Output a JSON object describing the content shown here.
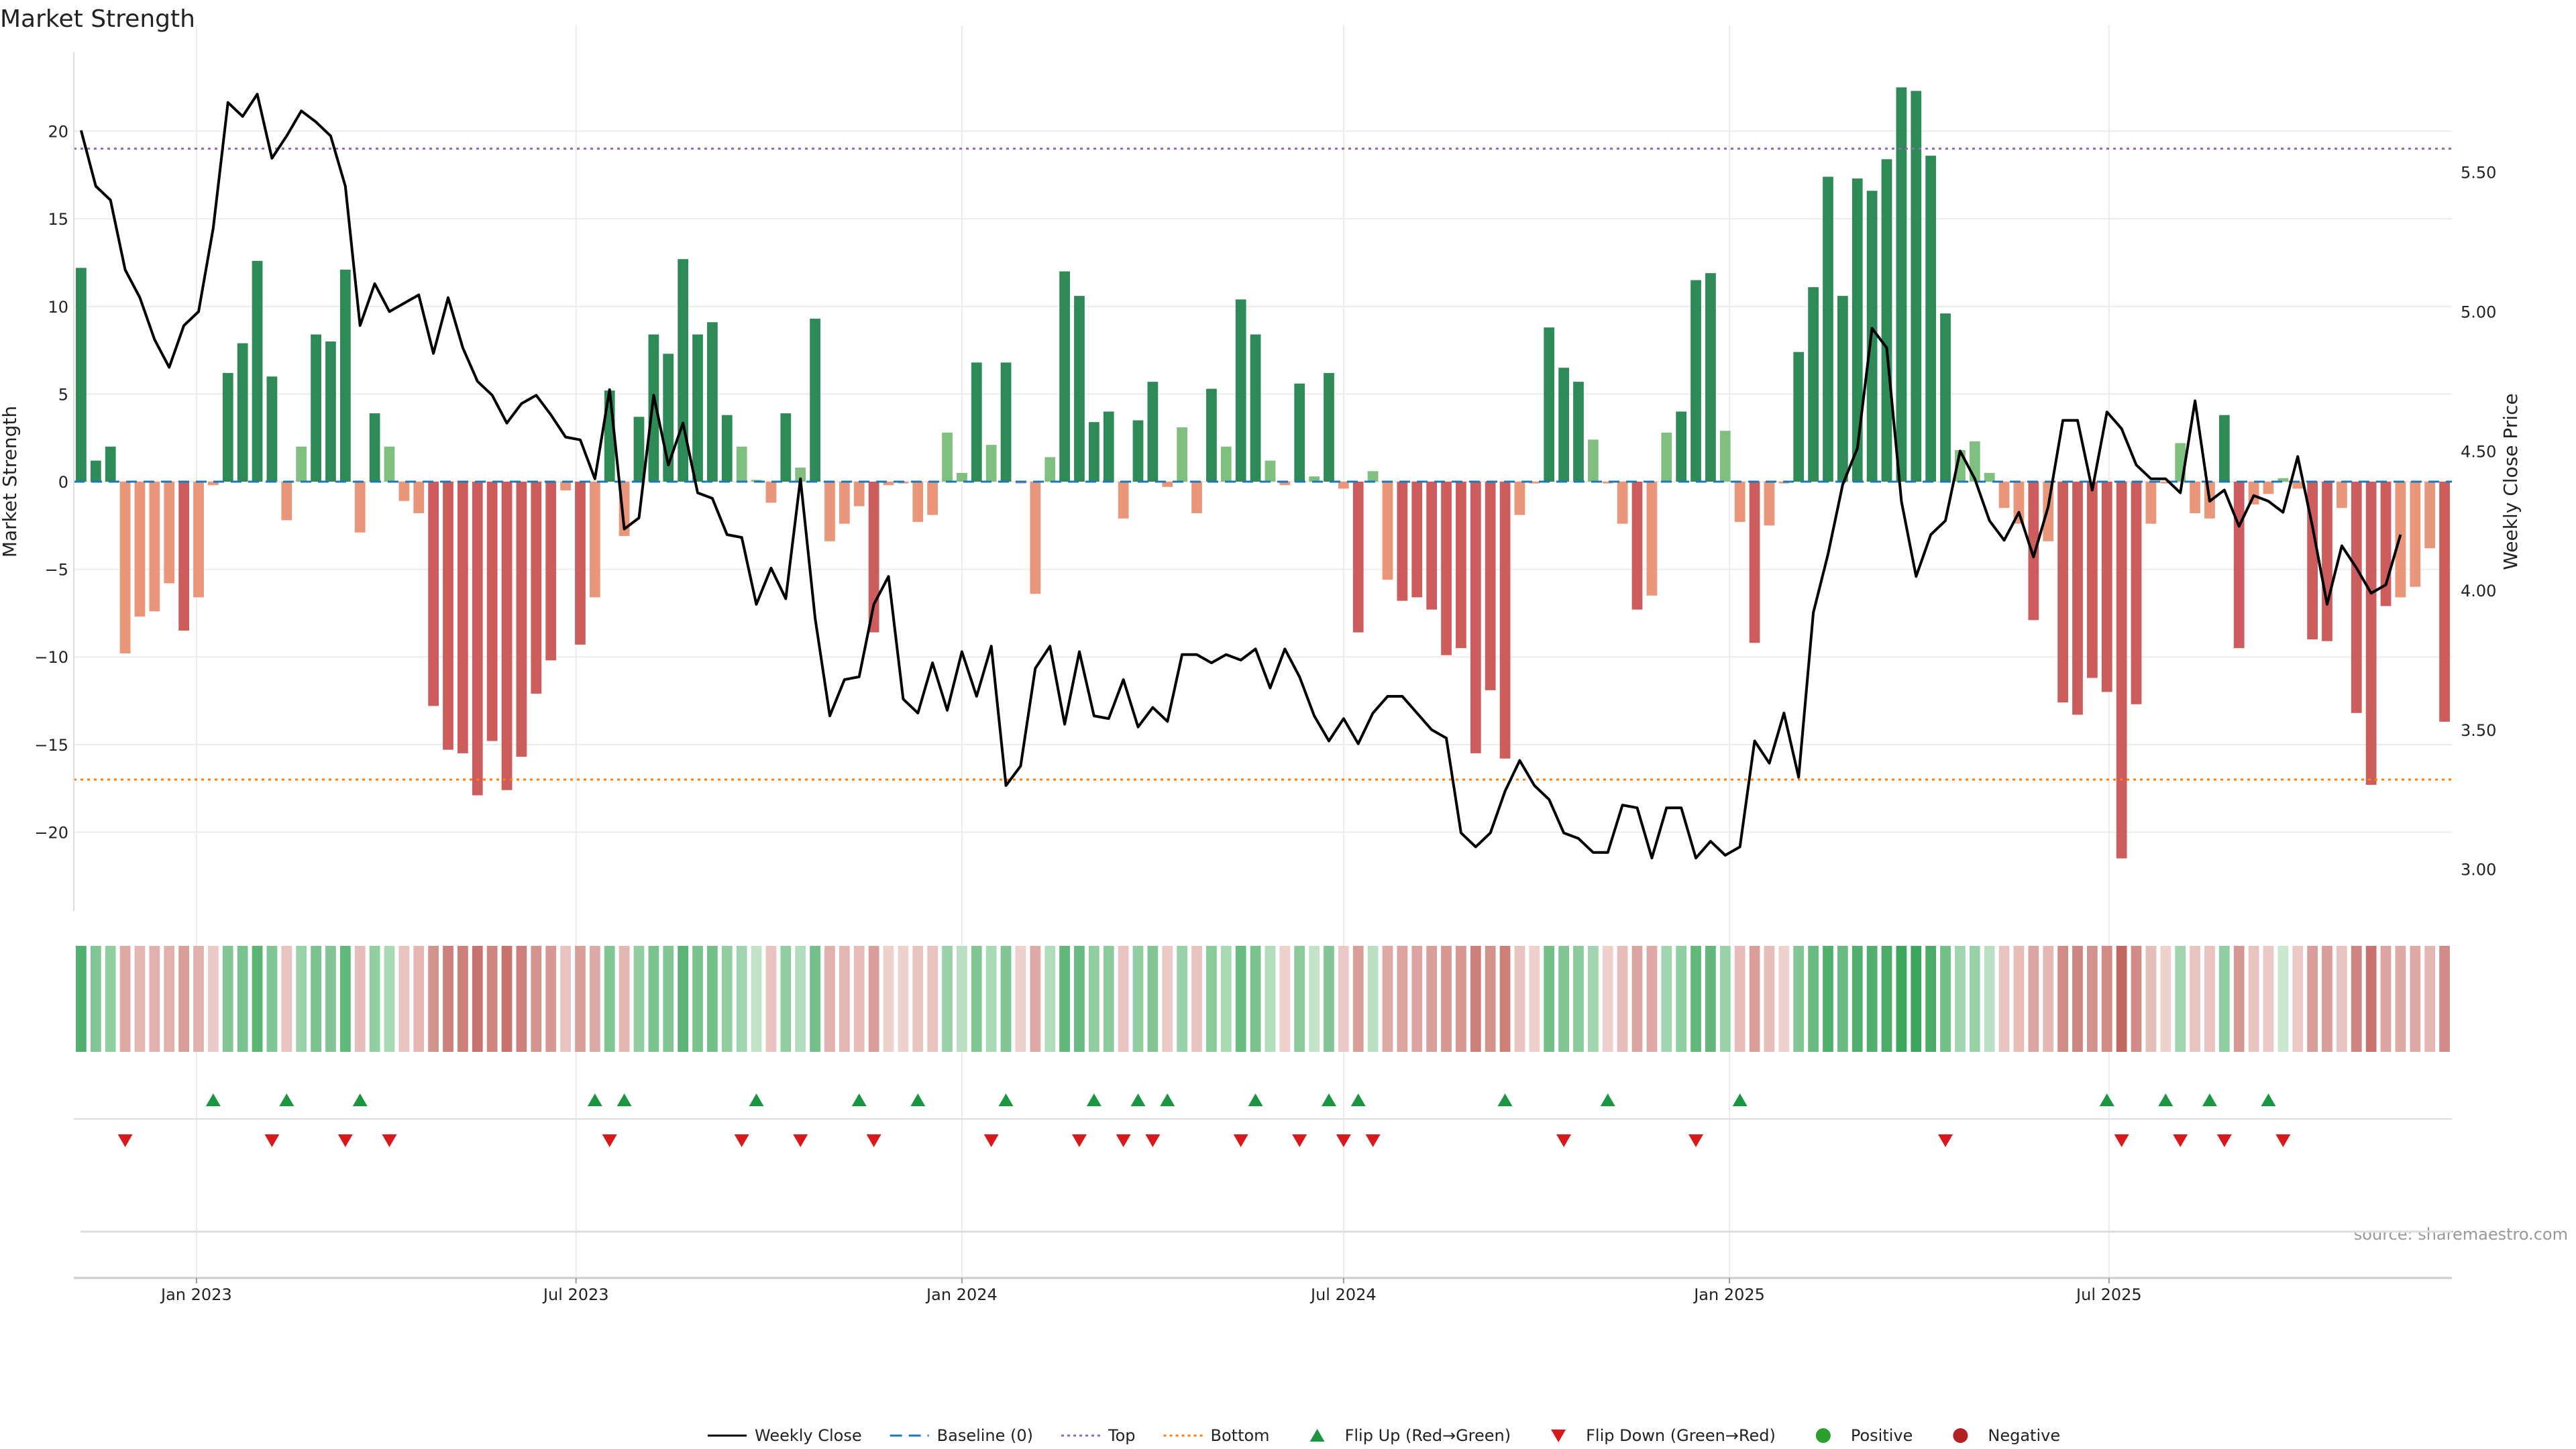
{
  "chart_data": {
    "type": "bar",
    "title": "Market Strength",
    "ylabel": "Market Strength",
    "y2label": "Weekly Close Price",
    "source": "source: sharemaestro.com",
    "ylim": [
      -24.5,
      24.5
    ],
    "y2lim": [
      2.85,
      5.93
    ],
    "yticks": [
      -20,
      -15,
      -10,
      -5,
      0,
      5,
      10,
      15,
      20
    ],
    "yticklabels": [
      "−20",
      "−15",
      "−10",
      "−5",
      "0",
      "5",
      "10",
      "15",
      "20"
    ],
    "y2ticks": [
      3.0,
      3.5,
      4.0,
      4.5,
      5.0,
      5.5
    ],
    "y2ticklabels": [
      "3.00",
      "3.50",
      "4.00",
      "4.50",
      "5.00",
      "5.50"
    ],
    "x_start": "2022-11-07",
    "x_step_days": 7,
    "xticks": [
      {
        "date": "2023-01-01",
        "label": "Jan 2023"
      },
      {
        "date": "2023-07-01",
        "label": "Jul 2023"
      },
      {
        "date": "2024-01-01",
        "label": "Jan 2024"
      },
      {
        "date": "2024-07-01",
        "label": "Jul 2024"
      },
      {
        "date": "2025-01-01",
        "label": "Jan 2025"
      },
      {
        "date": "2025-07-01",
        "label": "Jul 2025"
      }
    ],
    "top_level": 19,
    "bottom_level": -17,
    "colors": {
      "pos_strong": "#2e8b57",
      "pos_weak": "#7fbf7f",
      "neg_strong": "#cd5c5c",
      "neg_weak": "#e9967a",
      "price": "#000000",
      "baseline": "#1f77b4",
      "top": "#9467bd",
      "bottom": "#ff7f0e",
      "flip_up": "#1a9641",
      "flip_down": "#d7191c",
      "positive": "#2ca02c",
      "negative": "#b22222"
    },
    "strength": [
      12.2,
      1.2,
      2.0,
      -9.8,
      -7.7,
      -7.4,
      -5.8,
      -8.5,
      -6.6,
      -0.2,
      6.2,
      7.9,
      12.6,
      6.0,
      -2.2,
      2.0,
      8.4,
      8.0,
      12.1,
      -2.9,
      3.9,
      2.0,
      -1.1,
      -1.8,
      -12.8,
      -15.3,
      -15.5,
      -17.9,
      -14.8,
      -17.6,
      -15.7,
      -12.1,
      -10.2,
      -0.5,
      -9.3,
      -6.6,
      5.2,
      -3.1,
      3.7,
      8.4,
      7.3,
      12.7,
      8.4,
      9.1,
      3.8,
      2.0,
      0.1,
      -1.2,
      3.9,
      0.8,
      9.3,
      -3.4,
      -2.4,
      -1.4,
      -8.6,
      -0.2,
      -0.1,
      -2.3,
      -1.9,
      2.8,
      0.5,
      6.8,
      2.1,
      6.8,
      -0.1,
      -6.4,
      1.4,
      12.0,
      10.6,
      3.4,
      4.0,
      -2.1,
      3.5,
      5.7,
      -0.3,
      3.1,
      -1.8,
      5.3,
      2.0,
      10.4,
      8.4,
      1.2,
      -0.2,
      5.6,
      0.3,
      6.2,
      -0.4,
      -8.6,
      0.6,
      -5.6,
      -6.8,
      -6.6,
      -7.3,
      -9.9,
      -9.5,
      -15.5,
      -11.9,
      -15.8,
      -1.9,
      -0.1,
      8.8,
      6.5,
      5.7,
      2.4,
      -0.1,
      -2.4,
      -7.3,
      -6.5,
      2.8,
      4.0,
      11.5,
      11.9,
      2.9,
      -2.3,
      -9.2,
      -2.5,
      -0.1,
      7.4,
      11.1,
      17.4,
      10.6,
      17.3,
      16.6,
      18.4,
      22.5,
      22.3,
      18.6,
      9.6,
      1.8,
      2.3,
      0.5,
      -1.5,
      -2.4,
      -7.9,
      -3.4,
      -12.6,
      -13.3,
      -11.2,
      -12.0,
      -21.5,
      -12.7,
      -2.4,
      -0.1,
      2.2,
      -1.8,
      -2.1,
      3.8,
      -9.5,
      -1.3,
      -0.7,
      0.2,
      -0.4,
      -9.0,
      -9.1,
      -1.5,
      -13.2,
      -17.3,
      -7.1,
      -6.6,
      -6.0,
      -3.8,
      -13.7
    ],
    "intensity": [
      0.85,
      0.55,
      0.45,
      0.4,
      0.3,
      0.35,
      0.35,
      0.5,
      0.35,
      0.15,
      0.55,
      0.6,
      0.8,
      0.55,
      0.2,
      0.4,
      0.6,
      0.55,
      0.75,
      0.25,
      0.45,
      0.3,
      0.2,
      0.3,
      0.6,
      0.75,
      0.75,
      0.85,
      0.7,
      0.85,
      0.75,
      0.6,
      0.55,
      0.2,
      0.5,
      0.4,
      0.55,
      0.3,
      0.45,
      0.6,
      0.55,
      0.8,
      0.6,
      0.65,
      0.45,
      0.35,
      0.15,
      0.2,
      0.45,
      0.25,
      0.65,
      0.35,
      0.3,
      0.25,
      0.5,
      0.1,
      0.1,
      0.2,
      0.2,
      0.4,
      0.2,
      0.55,
      0.3,
      0.55,
      0.1,
      0.4,
      0.25,
      0.75,
      0.7,
      0.45,
      0.5,
      0.2,
      0.45,
      0.55,
      0.15,
      0.4,
      0.2,
      0.5,
      0.3,
      0.7,
      0.6,
      0.25,
      0.1,
      0.5,
      0.15,
      0.55,
      0.15,
      0.5,
      0.2,
      0.4,
      0.45,
      0.45,
      0.5,
      0.55,
      0.55,
      0.75,
      0.6,
      0.75,
      0.2,
      0.1,
      0.65,
      0.55,
      0.5,
      0.35,
      0.1,
      0.25,
      0.45,
      0.4,
      0.35,
      0.45,
      0.75,
      0.75,
      0.4,
      0.25,
      0.5,
      0.25,
      0.1,
      0.55,
      0.7,
      0.85,
      0.7,
      0.85,
      0.85,
      0.9,
      0.98,
      0.98,
      0.9,
      0.65,
      0.35,
      0.4,
      0.2,
      0.2,
      0.25,
      0.45,
      0.3,
      0.65,
      0.7,
      0.6,
      0.65,
      0.95,
      0.65,
      0.25,
      0.1,
      0.35,
      0.2,
      0.2,
      0.45,
      0.55,
      0.2,
      0.15,
      0.1,
      0.15,
      0.5,
      0.5,
      0.2,
      0.7,
      0.85,
      0.45,
      0.4,
      0.4,
      0.3,
      0.65
    ],
    "price": [
      5.65,
      5.45,
      5.4,
      5.15,
      5.05,
      4.9,
      4.8,
      4.95,
      5.0,
      5.3,
      5.75,
      5.7,
      5.78,
      5.55,
      5.63,
      5.72,
      5.68,
      5.63,
      5.45,
      4.95,
      5.1,
      5.0,
      5.03,
      5.06,
      4.85,
      5.05,
      4.87,
      4.75,
      4.7,
      4.6,
      4.67,
      4.7,
      4.63,
      4.55,
      4.54,
      4.4,
      4.72,
      4.22,
      4.26,
      4.7,
      4.45,
      4.6,
      4.35,
      4.33,
      4.2,
      4.19,
      3.95,
      4.08,
      3.97,
      4.4,
      3.9,
      3.55,
      3.68,
      3.69,
      3.95,
      4.05,
      3.61,
      3.56,
      3.74,
      3.57,
      3.78,
      3.62,
      3.8,
      3.3,
      3.37,
      3.72,
      3.8,
      3.52,
      3.78,
      3.55,
      3.54,
      3.68,
      3.51,
      3.58,
      3.53,
      3.77,
      3.77,
      3.74,
      3.77,
      3.75,
      3.79,
      3.65,
      3.79,
      3.69,
      3.55,
      3.46,
      3.54,
      3.45,
      3.56,
      3.62,
      3.62,
      3.56,
      3.5,
      3.47,
      3.13,
      3.08,
      3.13,
      3.28,
      3.39,
      3.3,
      3.25,
      3.13,
      3.11,
      3.06,
      3.06,
      3.23,
      3.22,
      3.04,
      3.22,
      3.22,
      3.04,
      3.1,
      3.05,
      3.08,
      3.46,
      3.38,
      3.56,
      3.33,
      3.92,
      4.13,
      4.38,
      4.51,
      4.94,
      4.87,
      4.32,
      4.05,
      4.2,
      4.25,
      4.5,
      4.4,
      4.25,
      4.18,
      4.28,
      4.12,
      4.3,
      4.61,
      4.61,
      4.36,
      4.64,
      4.58,
      4.45,
      4.4,
      4.4,
      4.35,
      4.68,
      4.32,
      4.36,
      4.23,
      4.34,
      4.32,
      4.28,
      4.48,
      4.23,
      3.95,
      4.16,
      4.08,
      3.99,
      4.02,
      4.2
    ],
    "flip_up_idx": [
      9,
      14,
      19,
      35,
      37,
      46,
      53,
      57,
      63,
      69,
      72,
      74,
      80,
      85,
      87,
      97,
      104,
      113,
      138,
      142,
      145,
      149
    ],
    "flip_down_idx": [
      3,
      13,
      18,
      21,
      36,
      45,
      49,
      54,
      62,
      68,
      71,
      73,
      79,
      83,
      86,
      88,
      101,
      110,
      127,
      139,
      143,
      146,
      150
    ],
    "legend": [
      {
        "key": "price",
        "label": "Weekly Close",
        "style": "line"
      },
      {
        "key": "baseline",
        "label": "Baseline (0)",
        "style": "dash"
      },
      {
        "key": "top",
        "label": "Top",
        "style": "dot"
      },
      {
        "key": "bottom",
        "label": "Bottom",
        "style": "dot"
      },
      {
        "key": "flip_up",
        "label": "Flip Up (Red→Green)",
        "style": "tri-up"
      },
      {
        "key": "flip_down",
        "label": "Flip Down (Green→Red)",
        "style": "tri-down"
      },
      {
        "key": "positive",
        "label": "Positive",
        "style": "circle"
      },
      {
        "key": "negative",
        "label": "Negative",
        "style": "circle"
      }
    ]
  }
}
